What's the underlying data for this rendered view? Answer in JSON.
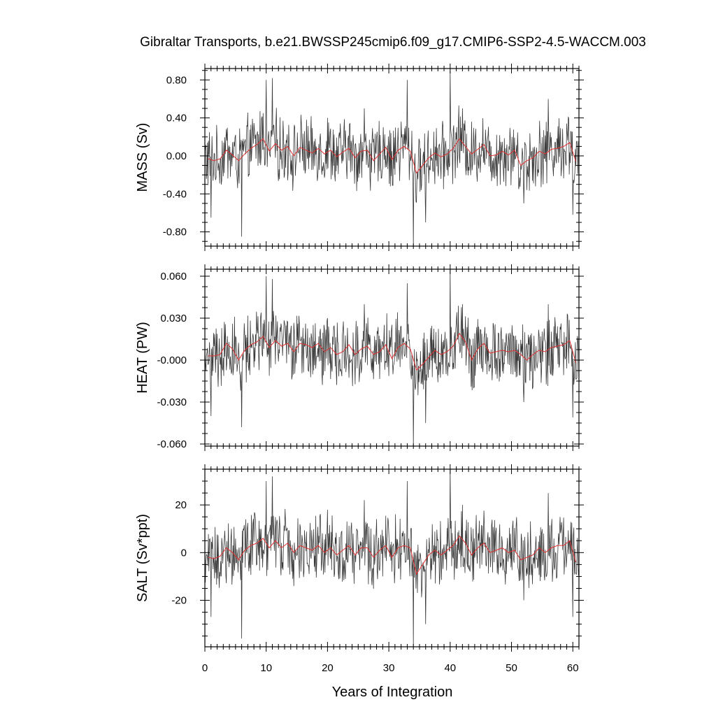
{
  "figure": {
    "title": "Gibraltar Transports, b.e21.BWSSP245cmip6.f09_g17.CMIP6-SSP2-4.5-WACCM.003",
    "xlabel": "Years of Integration"
  },
  "chart_data": [
    {
      "type": "line",
      "panel": "mass",
      "ylabel": "MASS (Sv)",
      "xlim": [
        0,
        61
      ],
      "ylim": [
        -0.95,
        0.92
      ],
      "xticks": [
        0,
        10,
        20,
        30,
        40,
        50,
        60
      ],
      "xtick_labels": [
        "0",
        "10",
        "20",
        "30",
        "40",
        "50",
        "60"
      ],
      "yticks": [
        0.8,
        0.4,
        0.0,
        -0.4,
        -0.8
      ],
      "ytick_labels": [
        "0.80",
        "0.40",
        "0.00",
        "-0.40",
        "-0.80"
      ],
      "grid": false,
      "series_colors": {
        "monthly": "#3a3a3a",
        "annual": "#e03030"
      },
      "series": [
        {
          "name": "",
          "kind": "monthly-spikes",
          "peaks": [
            [
              1,
              -0.65
            ],
            [
              6,
              -0.85
            ],
            [
              9.5,
              0.45
            ],
            [
              10,
              0.8
            ],
            [
              11,
              0.82
            ],
            [
              20,
              0.4
            ],
            [
              26,
              0.5
            ],
            [
              33,
              0.8
            ],
            [
              34,
              -0.95
            ],
            [
              36,
              -0.7
            ],
            [
              40,
              0.9
            ],
            [
              42,
              0.5
            ],
            [
              52,
              -0.5
            ],
            [
              56,
              0.6
            ],
            [
              60,
              -0.62
            ]
          ]
        },
        {
          "name": "",
          "kind": "annual-mean",
          "x": [
            0.5,
            1.5,
            2.5,
            3.5,
            4.5,
            5.5,
            6.5,
            7.5,
            8.5,
            9.5,
            10.5,
            11.5,
            12.5,
            13.5,
            14.5,
            15.5,
            16.5,
            17.5,
            18.5,
            19.5,
            20.5,
            21.5,
            22.5,
            23.5,
            24.5,
            25.5,
            26.5,
            27.5,
            28.5,
            29.5,
            30.5,
            31.5,
            32.5,
            33.5,
            34.5,
            35.5,
            36.5,
            37.5,
            38.5,
            39.5,
            40.5,
            41.5,
            42.5,
            43.5,
            44.5,
            45.5,
            46.5,
            47.5,
            48.5,
            49.5,
            50.5,
            51.5,
            52.5,
            53.5,
            54.5,
            55.5,
            56.5,
            57.5,
            58.5,
            59.5,
            60.5
          ],
          "y": [
            -0.03,
            -0.05,
            -0.03,
            0.06,
            0.01,
            -0.05,
            0.02,
            0.08,
            0.12,
            0.18,
            0.05,
            0.13,
            0.06,
            0.1,
            0.0,
            0.09,
            0.06,
            0.03,
            0.08,
            0.02,
            0.06,
            -0.01,
            0.04,
            0.08,
            -0.02,
            0.05,
            0.06,
            -0.05,
            0.02,
            0.09,
            -0.04,
            0.06,
            0.1,
            0.05,
            -0.18,
            -0.1,
            -0.02,
            0.03,
            -0.01,
            0.02,
            0.08,
            0.18,
            0.1,
            0.02,
            0.07,
            0.12,
            0.0,
            0.01,
            0.05,
            0.01,
            0.06,
            -0.1,
            -0.05,
            -0.02,
            0.05,
            0.02,
            0.07,
            0.08,
            0.1,
            0.14,
            -0.06
          ]
        }
      ]
    },
    {
      "type": "line",
      "panel": "heat",
      "ylabel": "HEAT (PW)",
      "xlim": [
        0,
        61
      ],
      "ylim": [
        -0.0615,
        0.065
      ],
      "xticks": [
        0,
        10,
        20,
        30,
        40,
        50,
        60
      ],
      "xtick_labels": [
        "0",
        "10",
        "20",
        "30",
        "40",
        "50",
        "60"
      ],
      "yticks": [
        0.06,
        0.03,
        0.0,
        -0.03,
        -0.06
      ],
      "ytick_labels": [
        "0.060",
        "0.030",
        "-0.000",
        "-0.030",
        "-0.060"
      ],
      "grid": false,
      "series_colors": {
        "monthly": "#3a3a3a",
        "annual": "#e03030"
      },
      "series": [
        {
          "name": "",
          "kind": "monthly-spikes",
          "peaks": [
            [
              1,
              -0.04
            ],
            [
              6,
              -0.048
            ],
            [
              10,
              0.06
            ],
            [
              11,
              0.058
            ],
            [
              20,
              0.03
            ],
            [
              26,
              0.04
            ],
            [
              33,
              0.055
            ],
            [
              34,
              -0.062
            ],
            [
              36,
              -0.045
            ],
            [
              40,
              0.065
            ],
            [
              42,
              0.04
            ],
            [
              52,
              -0.03
            ],
            [
              56,
              0.04
            ],
            [
              60,
              -0.041
            ]
          ]
        },
        {
          "name": "",
          "kind": "annual-mean",
          "x": [
            0.5,
            1.5,
            2.5,
            3.5,
            4.5,
            5.5,
            6.5,
            7.5,
            8.5,
            9.5,
            10.5,
            11.5,
            12.5,
            13.5,
            14.5,
            15.5,
            16.5,
            17.5,
            18.5,
            19.5,
            20.5,
            21.5,
            22.5,
            23.5,
            24.5,
            25.5,
            26.5,
            27.5,
            28.5,
            29.5,
            30.5,
            31.5,
            32.5,
            33.5,
            34.5,
            35.5,
            36.5,
            37.5,
            38.5,
            39.5,
            40.5,
            41.5,
            42.5,
            43.5,
            44.5,
            45.5,
            46.5,
            47.5,
            48.5,
            49.5,
            50.5,
            51.5,
            52.5,
            53.5,
            54.5,
            55.5,
            56.5,
            57.5,
            58.5,
            59.5,
            60.5
          ],
          "y": [
            0.003,
            0.003,
            0.004,
            0.012,
            0.008,
            0.0,
            0.007,
            0.011,
            0.013,
            0.017,
            0.009,
            0.014,
            0.01,
            0.012,
            0.006,
            0.012,
            0.011,
            0.009,
            0.012,
            0.006,
            0.009,
            0.004,
            0.006,
            0.011,
            0.004,
            0.008,
            0.01,
            0.004,
            0.006,
            0.011,
            0.001,
            0.009,
            0.012,
            0.008,
            -0.007,
            -0.003,
            0.002,
            0.007,
            0.004,
            0.006,
            0.01,
            0.019,
            0.013,
            0.0,
            0.008,
            0.012,
            0.005,
            0.006,
            0.007,
            0.006,
            0.007,
            0.004,
            0.0,
            0.004,
            0.007,
            0.006,
            0.009,
            0.01,
            0.011,
            0.014,
            -0.002
          ]
        }
      ]
    },
    {
      "type": "line",
      "panel": "salt",
      "ylabel": "SALT (Sv*ppt)",
      "xlim": [
        0,
        61
      ],
      "ylim": [
        -39.5,
        35
      ],
      "xticks": [
        0,
        10,
        20,
        30,
        40,
        50,
        60
      ],
      "xtick_labels": [
        "0",
        "10",
        "20",
        "30",
        "40",
        "50",
        "60"
      ],
      "yticks": [
        20,
        0,
        -20
      ],
      "ytick_labels": [
        "20",
        "0",
        "-20"
      ],
      "grid": false,
      "series_colors": {
        "monthly": "#3a3a3a",
        "annual": "#e03030"
      },
      "series": [
        {
          "name": "",
          "kind": "monthly-spikes",
          "peaks": [
            [
              1,
              -27
            ],
            [
              6,
              -36
            ],
            [
              10,
              30
            ],
            [
              11,
              32
            ],
            [
              20,
              18
            ],
            [
              26,
              22
            ],
            [
              33,
              30
            ],
            [
              34,
              -39
            ],
            [
              36,
              -30
            ],
            [
              40,
              35
            ],
            [
              42,
              20
            ],
            [
              52,
              -20
            ],
            [
              56,
              25
            ],
            [
              60,
              -27
            ]
          ]
        },
        {
          "name": "",
          "kind": "annual-mean",
          "x": [
            0.5,
            1.5,
            2.5,
            3.5,
            4.5,
            5.5,
            6.5,
            7.5,
            8.5,
            9.5,
            10.5,
            11.5,
            12.5,
            13.5,
            14.5,
            15.5,
            16.5,
            17.5,
            18.5,
            19.5,
            20.5,
            21.5,
            22.5,
            23.5,
            24.5,
            25.5,
            26.5,
            27.5,
            28.5,
            29.5,
            30.5,
            31.5,
            32.5,
            33.5,
            34.5,
            35.5,
            36.5,
            37.5,
            38.5,
            39.5,
            40.5,
            41.5,
            42.5,
            43.5,
            44.5,
            45.5,
            46.5,
            47.5,
            48.5,
            49.5,
            50.5,
            51.5,
            52.5,
            53.5,
            54.5,
            55.5,
            56.5,
            57.5,
            58.5,
            59.5,
            60.5
          ],
          "y": [
            -2,
            -2.5,
            -1.5,
            2,
            0,
            -3,
            1,
            3,
            4,
            6,
            2,
            5,
            2,
            4,
            0,
            3,
            2,
            1,
            3,
            0,
            2,
            -1,
            1,
            3,
            -1,
            2,
            2,
            -2,
            1,
            3,
            -2,
            2,
            3,
            2,
            -9,
            -5,
            -1,
            1,
            -1,
            1,
            3,
            7,
            4,
            -1,
            2,
            4,
            0,
            1,
            2,
            0,
            1,
            -3,
            -2,
            -1,
            2,
            0,
            2,
            3,
            3,
            5,
            -4
          ]
        }
      ]
    }
  ]
}
